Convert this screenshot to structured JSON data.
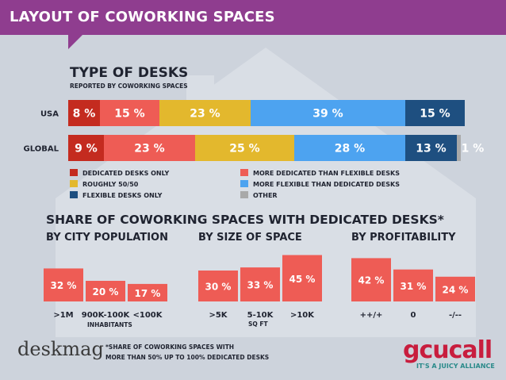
{
  "header": {
    "title": "LAYOUT OF COWORKING SPACES"
  },
  "desks": {
    "title": "TYPE OF DESKS",
    "subtitle": "REPORTED BY COWORKING SPACES",
    "legend": [
      {
        "label": "DEDICATED DESKS ONLY",
        "color": "#c42b1f"
      },
      {
        "label": "MORE DEDICATED THAN FLEXIBLE DESKS",
        "color": "#ee5c55"
      },
      {
        "label": "ROUGHLY 50/50",
        "color": "#e3b82d"
      },
      {
        "label": "MORE FLEXIBLE THAN DEDICATED DESKS",
        "color": "#4da3f0"
      },
      {
        "label": "FLEXIBLE DESKS ONLY",
        "color": "#1e4f80"
      },
      {
        "label": "OTHER",
        "color": "#a9a9a9"
      }
    ]
  },
  "dedicated": {
    "title": "SHARE OF COWORKING SPACES WITH DEDICATED DESKS*",
    "groups": [
      "BY CITY POPULATION",
      "BY SIZE OF SPACE",
      "BY PROFITABILITY"
    ],
    "sublabels": [
      "INHABITANTS",
      "SQ FT"
    ],
    "footnote_line1": "*SHARE OF COWORKING SPACES WITH",
    "footnote_line2": "MORE THAN 50% UP TO 100% DEDICATED DESKS"
  },
  "logos": {
    "deskmag": "deskmag",
    "gcuc": "gcucall",
    "gcuc_tagline": "IT'S A JUICY ALLIANCE"
  },
  "chart_data": [
    {
      "type": "bar",
      "orientation": "horizontal-stacked",
      "categories": [
        "USA",
        "GLOBAL"
      ],
      "series": [
        {
          "name": "DEDICATED DESKS ONLY",
          "color": "#c42b1f",
          "values": [
            8,
            9
          ],
          "labels": [
            "8 %",
            "9 %"
          ]
        },
        {
          "name": "MORE DEDICATED THAN FLEXIBLE DESKS",
          "color": "#ee5c55",
          "values": [
            15,
            23
          ],
          "labels": [
            "15 %",
            "23 %"
          ]
        },
        {
          "name": "ROUGHLY 50/50",
          "color": "#e3b82d",
          "values": [
            23,
            25
          ],
          "labels": [
            "23 %",
            "25 %"
          ]
        },
        {
          "name": "MORE FLEXIBLE THAN DEDICATED DESKS",
          "color": "#4da3f0",
          "values": [
            39,
            28
          ],
          "labels": [
            "39 %",
            "28 %"
          ]
        },
        {
          "name": "FLEXIBLE DESKS ONLY",
          "color": "#1e4f80",
          "values": [
            15,
            13
          ],
          "labels": [
            "15 %",
            "13 %"
          ]
        },
        {
          "name": "OTHER",
          "color": "#a9a9a9",
          "values": [
            0,
            1
          ],
          "labels": [
            "",
            "1 %"
          ]
        }
      ],
      "xlim": [
        0,
        100
      ]
    },
    {
      "type": "bar",
      "title": "BY CITY POPULATION",
      "categories": [
        ">1M",
        "900K-100K",
        "<100K"
      ],
      "values": [
        32,
        20,
        17
      ],
      "labels": [
        "32 %",
        "20 %",
        "17 %"
      ],
      "color": "#ee5c55"
    },
    {
      "type": "bar",
      "title": "BY SIZE OF SPACE",
      "categories": [
        ">5K",
        "5-10K",
        ">10K"
      ],
      "values": [
        30,
        33,
        45
      ],
      "labels": [
        "30 %",
        "33 %",
        "45 %"
      ],
      "color": "#ee5c55"
    },
    {
      "type": "bar",
      "title": "BY PROFITABILITY",
      "categories": [
        "++/+",
        "0",
        "-/--"
      ],
      "values": [
        42,
        31,
        24
      ],
      "labels": [
        "42 %",
        "31 %",
        "24 %"
      ],
      "color": "#ee5c55"
    }
  ]
}
